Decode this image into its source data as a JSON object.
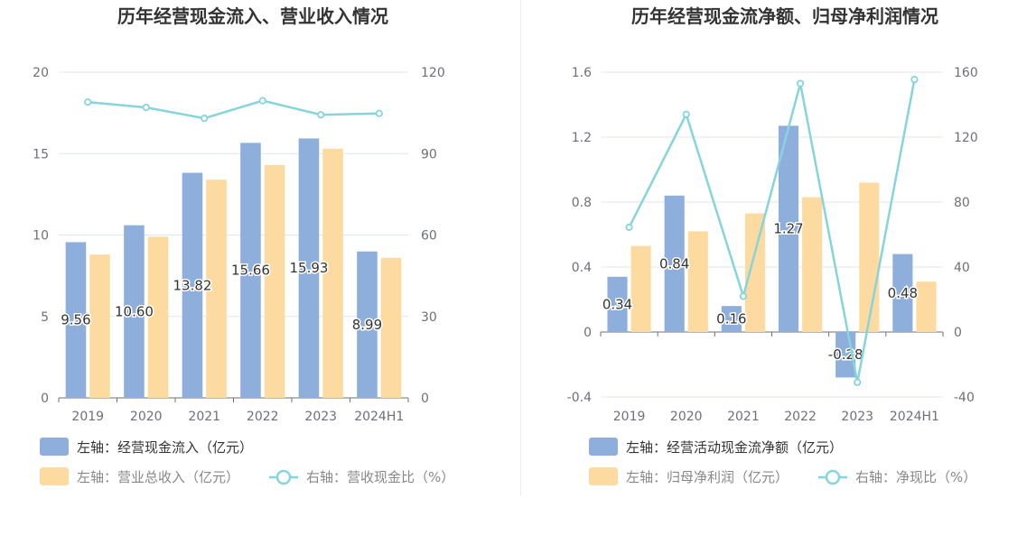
{
  "chart_data": [
    {
      "type": "bar+line",
      "title": "历年经营现金流入、营业收入情况",
      "categories": [
        "2019",
        "2020",
        "2021",
        "2022",
        "2023",
        "2024H1"
      ],
      "left_axis": {
        "ylim": [
          0,
          20
        ],
        "ticks": [
          "0",
          "5",
          "10",
          "15",
          "20"
        ]
      },
      "right_axis": {
        "ylim": [
          0,
          120
        ],
        "ticks": [
          "0",
          "30",
          "60",
          "90",
          "120"
        ]
      },
      "series": [
        {
          "name": "左轴：经营现金流入（亿元）",
          "type": "bar",
          "axis": "left",
          "color": "#8eaedb",
          "values": [
            9.56,
            10.6,
            13.82,
            15.66,
            15.93,
            8.99
          ],
          "labels": [
            "9.56",
            "10.60",
            "13.82",
            "15.66",
            "15.93",
            "8.99"
          ]
        },
        {
          "name": "左轴：营业总收入（亿元）",
          "type": "bar",
          "axis": "left",
          "color": "#fddba0",
          "values": [
            8.8,
            9.9,
            13.4,
            14.3,
            15.3,
            8.6
          ]
        },
        {
          "name": "右轴：营收现金比（%）",
          "type": "line",
          "axis": "right",
          "color": "#86d4dc",
          "values": [
            109.0,
            107.0,
            103.0,
            109.5,
            104.3,
            104.8
          ]
        }
      ]
    },
    {
      "type": "bar+line",
      "title": "历年经营现金流净额、归母净利润情况",
      "categories": [
        "2019",
        "2020",
        "2021",
        "2022",
        "2023",
        "2024H1"
      ],
      "left_axis": {
        "ylim": [
          -0.4,
          1.6
        ],
        "ticks": [
          "-0.4",
          "0",
          "0.4",
          "0.8",
          "1.2",
          "1.6"
        ]
      },
      "right_axis": {
        "ylim": [
          -40,
          160
        ],
        "ticks": [
          "-40",
          "0",
          "40",
          "80",
          "120",
          "160"
        ]
      },
      "series": [
        {
          "name": "左轴：经营活动现金流净额（亿元）",
          "type": "bar",
          "axis": "left",
          "color": "#8eaedb",
          "values": [
            0.34,
            0.84,
            0.16,
            1.27,
            -0.28,
            0.48
          ],
          "labels": [
            "0.34",
            "0.84",
            "0.16",
            "1.27",
            "-0.28",
            "0.48"
          ]
        },
        {
          "name": "左轴：归母净利润（亿元）",
          "type": "bar",
          "axis": "left",
          "color": "#fddba0",
          "values": [
            0.53,
            0.62,
            0.73,
            0.83,
            0.92,
            0.31
          ]
        },
        {
          "name": "右轴：净现比（%）",
          "type": "line",
          "axis": "right",
          "color": "#86d4dc",
          "values": [
            64.5,
            134.0,
            22.0,
            153.0,
            -31.0,
            155.5
          ]
        }
      ]
    }
  ]
}
